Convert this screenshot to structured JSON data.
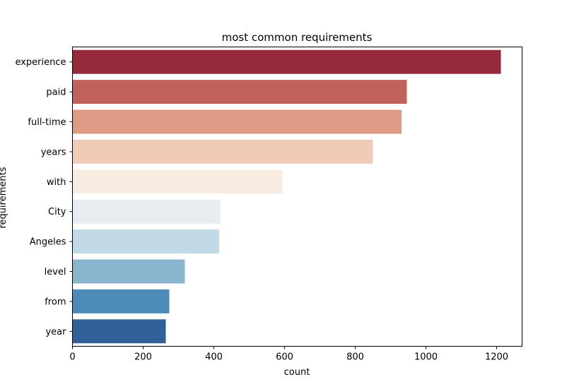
{
  "chart_data": {
    "type": "bar",
    "orientation": "horizontal",
    "title": "most common requirements",
    "xlabel": "count",
    "ylabel": "requirements",
    "xlim": [
      0,
      1272
    ],
    "xticks": [
      0,
      200,
      400,
      600,
      800,
      1000,
      1200
    ],
    "grid": false,
    "legend": "none",
    "categories": [
      "experience",
      "paid",
      "full-time",
      "years",
      "with",
      "City",
      "Angeles",
      "level",
      "from",
      "year"
    ],
    "values": [
      1212,
      946,
      931,
      850,
      594,
      418,
      415,
      318,
      274,
      264
    ],
    "colors": [
      "#972a3a",
      "#c0625a",
      "#de9a85",
      "#f0cbb8",
      "#f8ebe2",
      "#e7edf1",
      "#c1dae5",
      "#89b5ce",
      "#4c8ab7",
      "#2f6097"
    ]
  }
}
